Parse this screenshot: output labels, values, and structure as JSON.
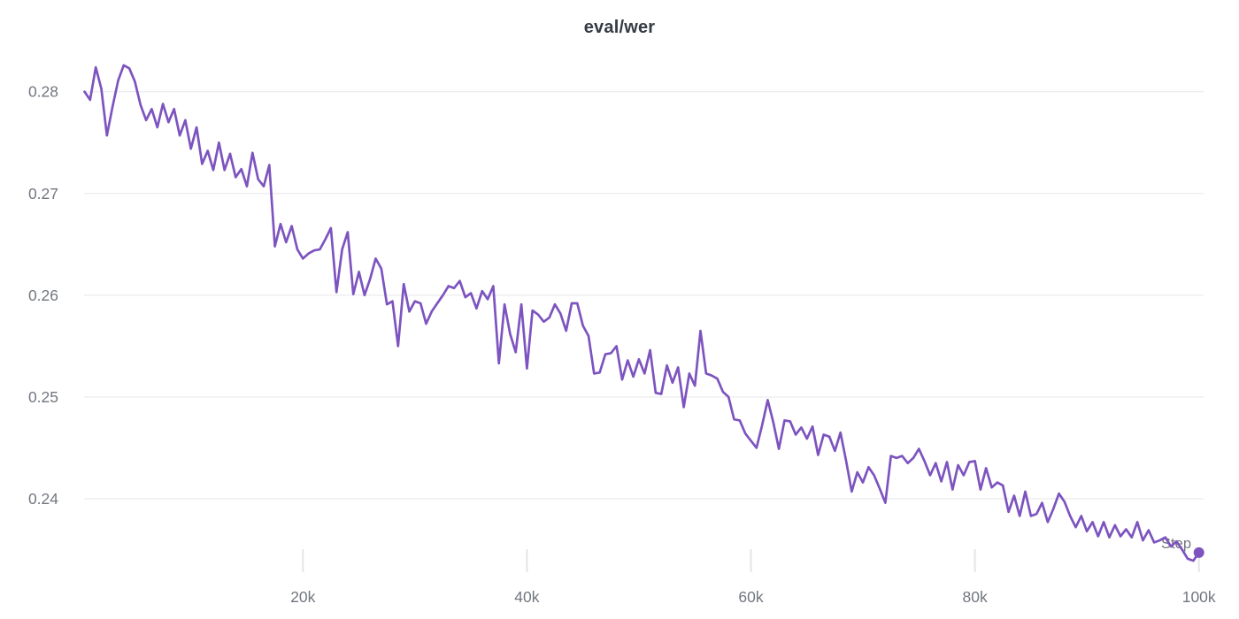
{
  "chart_data": {
    "type": "line",
    "title": "eval/wer",
    "xlabel": "Step",
    "ylabel": "",
    "x_ticks": [
      {
        "step": 20000,
        "label": "20k"
      },
      {
        "step": 40000,
        "label": "40k"
      },
      {
        "step": 60000,
        "label": "60k"
      },
      {
        "step": 80000,
        "label": "80k"
      },
      {
        "step": 100000,
        "label": "100k"
      }
    ],
    "y_ticks": [
      {
        "value": 0.28,
        "label": "0.28"
      },
      {
        "value": 0.27,
        "label": "0.27"
      },
      {
        "value": 0.26,
        "label": "0.26"
      },
      {
        "value": 0.25,
        "label": "0.25"
      },
      {
        "value": 0.24,
        "label": "0.24"
      }
    ],
    "xlim": [
      500,
      100000
    ],
    "ylim": [
      0.2338,
      0.2838
    ],
    "grid": "horizontal",
    "legend": "none",
    "series": [
      {
        "name": "eval/wer",
        "color": "#7d54bf",
        "end_marker": true,
        "points": [
          [
            500,
            0.28
          ],
          [
            1000,
            0.2792
          ],
          [
            1500,
            0.2824
          ],
          [
            2000,
            0.2803
          ],
          [
            2500,
            0.2757
          ],
          [
            3000,
            0.2785
          ],
          [
            3500,
            0.2811
          ],
          [
            4000,
            0.2826
          ],
          [
            4500,
            0.2823
          ],
          [
            5000,
            0.281
          ],
          [
            5500,
            0.2787
          ],
          [
            6000,
            0.2772
          ],
          [
            6500,
            0.2783
          ],
          [
            7000,
            0.2765
          ],
          [
            7500,
            0.2788
          ],
          [
            8000,
            0.277
          ],
          [
            8500,
            0.2783
          ],
          [
            9000,
            0.2757
          ],
          [
            9500,
            0.2772
          ],
          [
            10000,
            0.2744
          ],
          [
            10500,
            0.2765
          ],
          [
            11000,
            0.2729
          ],
          [
            11500,
            0.2742
          ],
          [
            12000,
            0.2723
          ],
          [
            12500,
            0.275
          ],
          [
            13000,
            0.2723
          ],
          [
            13500,
            0.2739
          ],
          [
            14000,
            0.2716
          ],
          [
            14500,
            0.2724
          ],
          [
            15000,
            0.2707
          ],
          [
            15500,
            0.274
          ],
          [
            16000,
            0.2714
          ],
          [
            16500,
            0.2707
          ],
          [
            17000,
            0.2728
          ],
          [
            17500,
            0.2648
          ],
          [
            18000,
            0.267
          ],
          [
            18500,
            0.2652
          ],
          [
            19000,
            0.2668
          ],
          [
            19500,
            0.2645
          ],
          [
            20000,
            0.2636
          ],
          [
            20500,
            0.2641
          ],
          [
            21000,
            0.2644
          ],
          [
            21500,
            0.2645
          ],
          [
            22000,
            0.2655
          ],
          [
            22500,
            0.2666
          ],
          [
            23000,
            0.2603
          ],
          [
            23500,
            0.2645
          ],
          [
            24000,
            0.2662
          ],
          [
            24500,
            0.2601
          ],
          [
            25000,
            0.2623
          ],
          [
            25500,
            0.26
          ],
          [
            26000,
            0.2616
          ],
          [
            26500,
            0.2636
          ],
          [
            27000,
            0.2626
          ],
          [
            27500,
            0.2591
          ],
          [
            28000,
            0.2594
          ],
          [
            28500,
            0.255
          ],
          [
            29000,
            0.2611
          ],
          [
            29500,
            0.2584
          ],
          [
            30000,
            0.2594
          ],
          [
            30500,
            0.2592
          ],
          [
            31000,
            0.2572
          ],
          [
            31500,
            0.2584
          ],
          [
            32000,
            0.2592
          ],
          [
            32500,
            0.26
          ],
          [
            33000,
            0.2609
          ],
          [
            33500,
            0.2607
          ],
          [
            34000,
            0.2614
          ],
          [
            34500,
            0.2598
          ],
          [
            35000,
            0.2602
          ],
          [
            35500,
            0.2587
          ],
          [
            36000,
            0.2604
          ],
          [
            36500,
            0.2596
          ],
          [
            37000,
            0.2609
          ],
          [
            37500,
            0.2533
          ],
          [
            38000,
            0.2591
          ],
          [
            38500,
            0.2562
          ],
          [
            39000,
            0.2544
          ],
          [
            39500,
            0.2591
          ],
          [
            40000,
            0.2528
          ],
          [
            40500,
            0.2585
          ],
          [
            41000,
            0.2581
          ],
          [
            41500,
            0.2574
          ],
          [
            42000,
            0.2578
          ],
          [
            42500,
            0.2591
          ],
          [
            43000,
            0.2582
          ],
          [
            43500,
            0.2565
          ],
          [
            44000,
            0.2592
          ],
          [
            44500,
            0.2592
          ],
          [
            45000,
            0.257
          ],
          [
            45500,
            0.256
          ],
          [
            46000,
            0.2523
          ],
          [
            46500,
            0.2524
          ],
          [
            47000,
            0.2542
          ],
          [
            47500,
            0.2543
          ],
          [
            48000,
            0.255
          ],
          [
            48500,
            0.2517
          ],
          [
            49000,
            0.2536
          ],
          [
            49500,
            0.252
          ],
          [
            50000,
            0.2537
          ],
          [
            50500,
            0.2523
          ],
          [
            51000,
            0.2546
          ],
          [
            51500,
            0.2504
          ],
          [
            52000,
            0.2503
          ],
          [
            52500,
            0.2531
          ],
          [
            53000,
            0.2514
          ],
          [
            53500,
            0.2529
          ],
          [
            54000,
            0.249
          ],
          [
            54500,
            0.2523
          ],
          [
            55000,
            0.2511
          ],
          [
            55500,
            0.2565
          ],
          [
            56000,
            0.2523
          ],
          [
            56500,
            0.2521
          ],
          [
            57000,
            0.2518
          ],
          [
            57500,
            0.2505
          ],
          [
            58000,
            0.25
          ],
          [
            58500,
            0.2478
          ],
          [
            59000,
            0.2477
          ],
          [
            59500,
            0.2464
          ],
          [
            60000,
            0.2457
          ],
          [
            60500,
            0.245
          ],
          [
            61000,
            0.2472
          ],
          [
            61500,
            0.2497
          ],
          [
            62000,
            0.2475
          ],
          [
            62500,
            0.2449
          ],
          [
            63000,
            0.2477
          ],
          [
            63500,
            0.2476
          ],
          [
            64000,
            0.2463
          ],
          [
            64500,
            0.247
          ],
          [
            65000,
            0.2459
          ],
          [
            65500,
            0.2471
          ],
          [
            66000,
            0.2443
          ],
          [
            66500,
            0.2463
          ],
          [
            67000,
            0.2461
          ],
          [
            67500,
            0.2447
          ],
          [
            68000,
            0.2465
          ],
          [
            68500,
            0.2437
          ],
          [
            69000,
            0.2407
          ],
          [
            69500,
            0.2426
          ],
          [
            70000,
            0.2416
          ],
          [
            70500,
            0.2431
          ],
          [
            71000,
            0.2423
          ],
          [
            71500,
            0.241
          ],
          [
            72000,
            0.2396
          ],
          [
            72500,
            0.2442
          ],
          [
            73000,
            0.244
          ],
          [
            73500,
            0.2442
          ],
          [
            74000,
            0.2435
          ],
          [
            74500,
            0.244
          ],
          [
            75000,
            0.2449
          ],
          [
            75500,
            0.2437
          ],
          [
            76000,
            0.2423
          ],
          [
            76500,
            0.2435
          ],
          [
            77000,
            0.2417
          ],
          [
            77500,
            0.2436
          ],
          [
            78000,
            0.2409
          ],
          [
            78500,
            0.2433
          ],
          [
            79000,
            0.2423
          ],
          [
            79500,
            0.2436
          ],
          [
            80000,
            0.2437
          ],
          [
            80500,
            0.2409
          ],
          [
            81000,
            0.243
          ],
          [
            81500,
            0.2411
          ],
          [
            82000,
            0.2416
          ],
          [
            82500,
            0.2413
          ],
          [
            83000,
            0.2387
          ],
          [
            83500,
            0.2403
          ],
          [
            84000,
            0.2383
          ],
          [
            84500,
            0.2407
          ],
          [
            85000,
            0.2383
          ],
          [
            85500,
            0.2385
          ],
          [
            86000,
            0.2396
          ],
          [
            86500,
            0.2377
          ],
          [
            87000,
            0.239
          ],
          [
            87500,
            0.2405
          ],
          [
            88000,
            0.2397
          ],
          [
            88500,
            0.2383
          ],
          [
            89000,
            0.2372
          ],
          [
            89500,
            0.2383
          ],
          [
            90000,
            0.2368
          ],
          [
            90500,
            0.2377
          ],
          [
            91000,
            0.2363
          ],
          [
            91500,
            0.2377
          ],
          [
            92000,
            0.2362
          ],
          [
            92500,
            0.2374
          ],
          [
            93000,
            0.2363
          ],
          [
            93500,
            0.237
          ],
          [
            94000,
            0.2362
          ],
          [
            94500,
            0.2377
          ],
          [
            95000,
            0.2359
          ],
          [
            95500,
            0.2369
          ],
          [
            96000,
            0.2357
          ],
          [
            96500,
            0.2359
          ],
          [
            97000,
            0.2362
          ],
          [
            97500,
            0.2353
          ],
          [
            98000,
            0.2358
          ],
          [
            98500,
            0.235
          ],
          [
            99000,
            0.2341
          ],
          [
            99500,
            0.2339
          ],
          [
            100000,
            0.2347
          ]
        ]
      }
    ]
  },
  "styles": {
    "accent": "#7d54bf",
    "grid_color": "#ededf0",
    "tick_color": "#e4e5e8",
    "label_color": "#72777f",
    "title_color": "#363a43",
    "background": "#ffffff"
  }
}
